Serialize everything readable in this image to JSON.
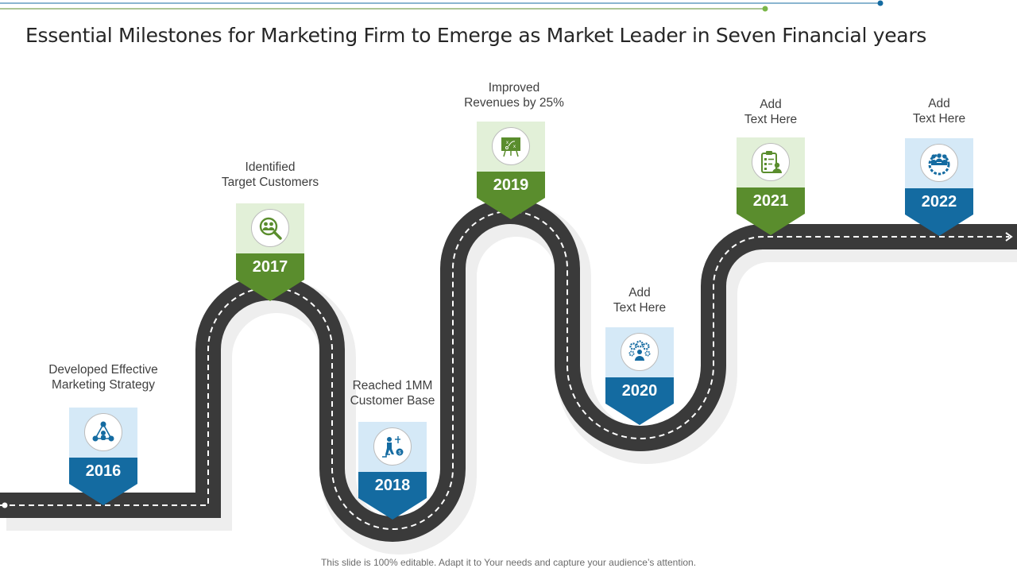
{
  "title": "Essential Milestones for Marketing Firm to Emerge as Market Leader in Seven Financial years",
  "footer": "This slide is 100% editable. Adapt it to Your needs and capture your audience’s attention.",
  "colors": {
    "blue": "#146ba1",
    "light_blue": "#d5e9f7",
    "green": "#5a8d2d",
    "light_green": "#e2f0d8",
    "road": "#3a3a3a"
  },
  "milestones": [
    {
      "year": "2016",
      "caption_line1": "Developed Effective",
      "caption_line2": "Marketing Strategy",
      "icon": "network-people-icon",
      "color": "blue"
    },
    {
      "year": "2017",
      "caption_line1": "Identified",
      "caption_line2": "Target Customers",
      "icon": "search-customers-icon",
      "color": "green"
    },
    {
      "year": "2018",
      "caption_line1": "Reached 1MM",
      "caption_line2": "Customer Base",
      "icon": "climbing-person-icon",
      "color": "blue"
    },
    {
      "year": "2019",
      "caption_line1": "Improved",
      "caption_line2": "Revenues by 25%",
      "icon": "strategy-board-icon",
      "color": "green"
    },
    {
      "year": "2020",
      "caption_line1": "Add",
      "caption_line2": "Text Here",
      "icon": "gears-person-icon",
      "color": "blue"
    },
    {
      "year": "2021",
      "caption_line1": "Add",
      "caption_line2": "Text Here",
      "icon": "clipboard-person-icon",
      "color": "green"
    },
    {
      "year": "2022",
      "caption_line1": "Add",
      "caption_line2": "Text Here",
      "icon": "team-gear-icon",
      "color": "blue"
    }
  ]
}
